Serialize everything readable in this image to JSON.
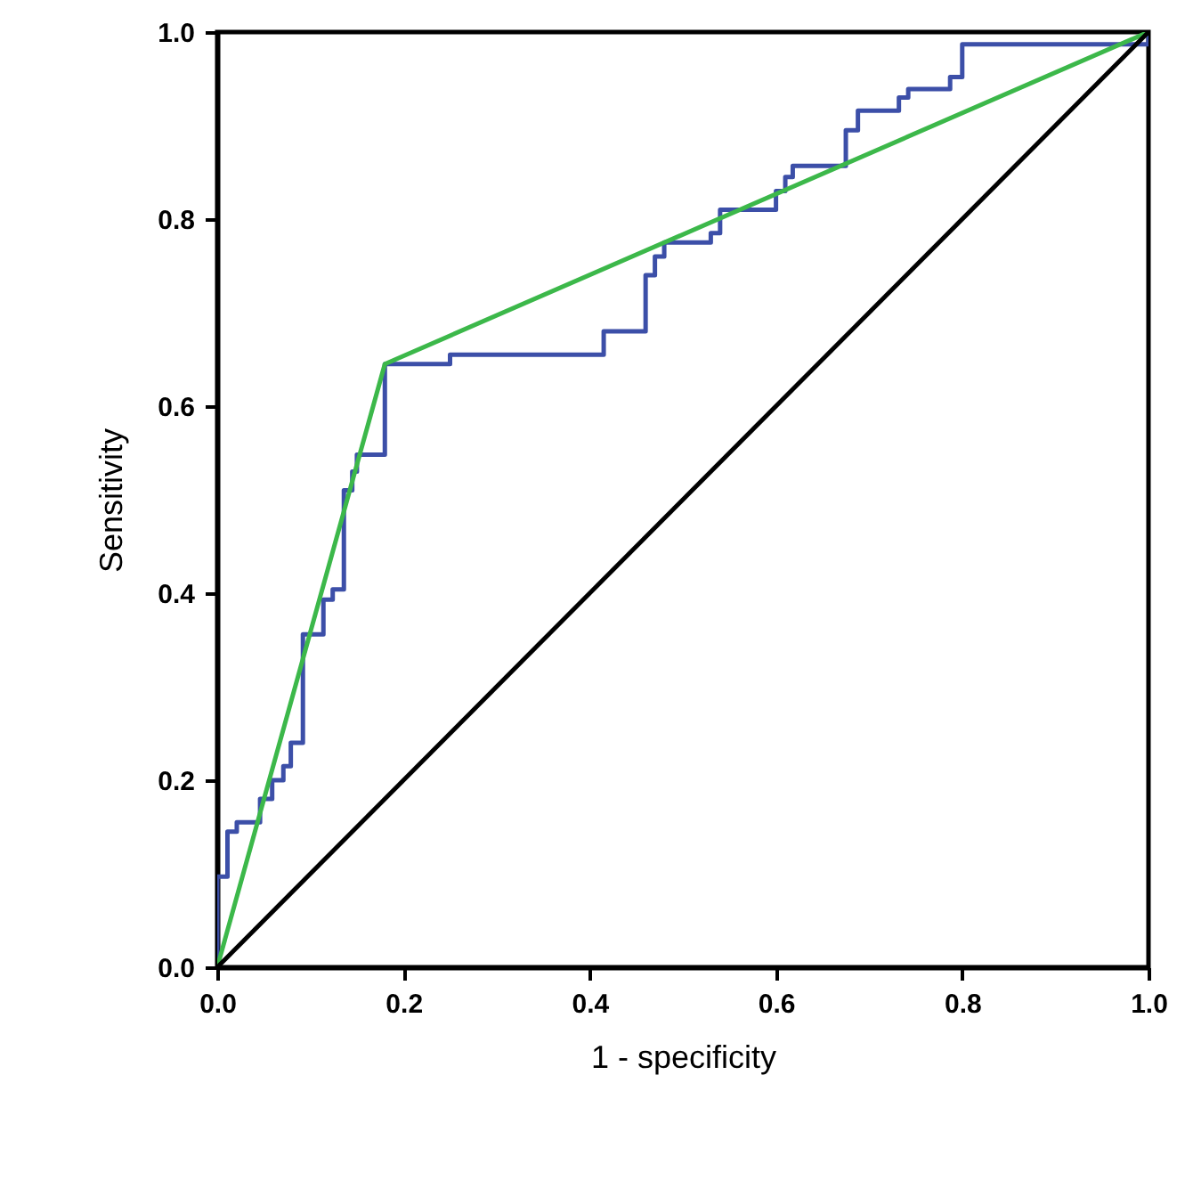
{
  "chart_data": {
    "type": "line",
    "xlabel": "1 - specificity",
    "ylabel": "Sensitivity",
    "xlim": [
      0,
      1
    ],
    "ylim": [
      0,
      1
    ],
    "xticks": [
      {
        "value": 0,
        "label": "0.0"
      },
      {
        "value": 0.2,
        "label": "0.2"
      },
      {
        "value": 0.4,
        "label": "0.4"
      },
      {
        "value": 0.6,
        "label": "0.6"
      },
      {
        "value": 0.8,
        "label": "0.8"
      },
      {
        "value": 1,
        "label": "1.0"
      }
    ],
    "yticks": [
      {
        "value": 0,
        "label": "0.0"
      },
      {
        "value": 0.2,
        "label": "0.2"
      },
      {
        "value": 0.4,
        "label": "0.4"
      },
      {
        "value": 0.6,
        "label": "0.6"
      },
      {
        "value": 0.8,
        "label": "0.8"
      },
      {
        "value": 1,
        "label": "1.0"
      }
    ],
    "grid": false,
    "series": [
      {
        "type": "step",
        "color": "#3c4fa8",
        "x": [
          0,
          0,
          0.011,
          0.021,
          0.046,
          0.059,
          0.071,
          0.079,
          0.092,
          0.114,
          0.124,
          0.136,
          0.145,
          0.15,
          0.18,
          0.25,
          0.415,
          0.46,
          0.47,
          0.48,
          0.53,
          0.54,
          0.6,
          0.61,
          0.618,
          0.675,
          0.688,
          0.732,
          0.742,
          0.787,
          0.8,
          1
        ],
        "values": [
          0,
          0.097,
          0.145,
          0.155,
          0.18,
          0.2,
          0.215,
          0.24,
          0.356,
          0.393,
          0.404,
          0.51,
          0.53,
          0.548,
          0.645,
          0.655,
          0.68,
          0.74,
          0.76,
          0.775,
          0.785,
          0.81,
          0.83,
          0.845,
          0.857,
          0.895,
          0.916,
          0.93,
          0.939,
          0.952,
          0.987,
          1
        ]
      },
      {
        "type": "line",
        "color": "#3cb84a",
        "x": [
          0,
          0.18,
          1
        ],
        "values": [
          0,
          0.645,
          1
        ]
      },
      {
        "type": "line",
        "color": "#000000",
        "x": [
          0,
          1
        ],
        "values": [
          0,
          1
        ]
      }
    ]
  }
}
